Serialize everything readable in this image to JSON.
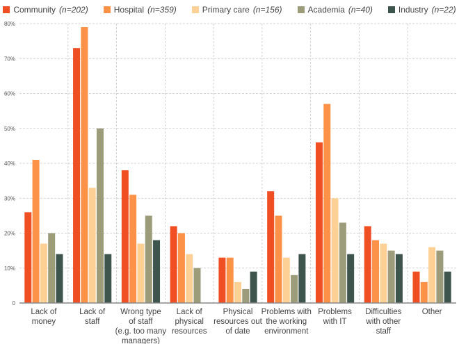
{
  "chart_data": {
    "type": "bar",
    "title": "",
    "xlabel": "",
    "ylabel": "",
    "ylim": [
      0,
      80
    ],
    "yticks": [
      0,
      10,
      20,
      30,
      40,
      50,
      60,
      70,
      80
    ],
    "ytick_labels": [
      "0",
      "10%",
      "20%",
      "30%",
      "40%",
      "50%",
      "60%",
      "70%",
      "80%"
    ],
    "grid": true,
    "legend_position": "top-center",
    "categories": [
      [
        "Lack of",
        "money"
      ],
      [
        "Lack of",
        "staff"
      ],
      [
        "Wrong type",
        "of staff",
        "(e.g. too many",
        "managers)"
      ],
      [
        "Lack of",
        "physical",
        "resources"
      ],
      [
        "Physical",
        "resources out",
        "of date"
      ],
      [
        "Problems with",
        "the working",
        "environment"
      ],
      [
        "Problems",
        "with IT"
      ],
      [
        "Difficulties",
        "with other",
        "staff"
      ],
      [
        "Other"
      ]
    ],
    "series": [
      {
        "name": "Community",
        "n": "(n=202)",
        "color": "#f04e23",
        "values": [
          26,
          73,
          38,
          22,
          13,
          32,
          46,
          22,
          9
        ]
      },
      {
        "name": "Hospital",
        "n": "(n=359)",
        "color": "#fb9248",
        "values": [
          41,
          79,
          31,
          20,
          13,
          25,
          57,
          18,
          6
        ]
      },
      {
        "name": "Primary care",
        "n": "(n=156)",
        "color": "#fdd195",
        "values": [
          17,
          33,
          17,
          14,
          6,
          13,
          30,
          17,
          16
        ]
      },
      {
        "name": "Academia",
        "n": "(n=40)",
        "color": "#9c9b7a",
        "values": [
          20,
          50,
          25,
          10,
          4,
          8,
          23,
          15,
          15
        ]
      },
      {
        "name": "Industry",
        "n": "(n=22)",
        "color": "#3d554c",
        "values": [
          14,
          14,
          18,
          0,
          9,
          14,
          14,
          14,
          9
        ]
      }
    ]
  }
}
